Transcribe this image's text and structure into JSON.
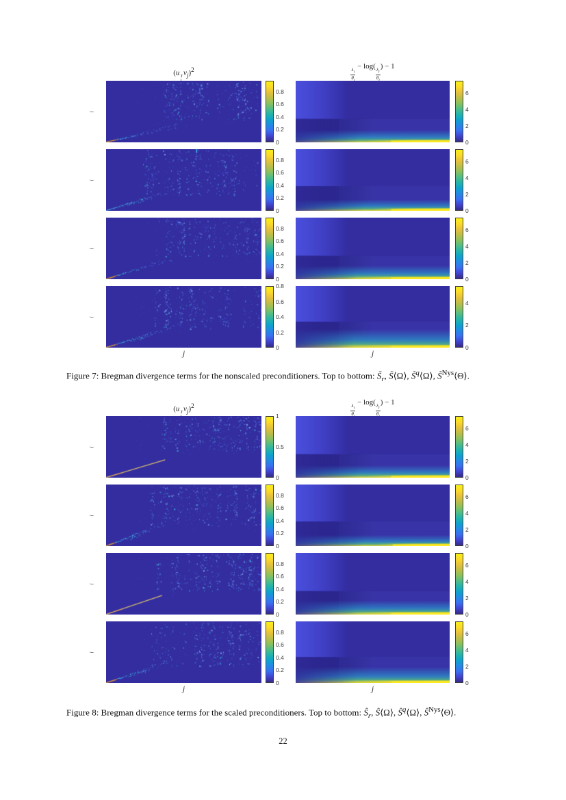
{
  "page": {
    "number": "22"
  },
  "colors": {
    "heat_bg": "#332da0",
    "band": "#4a50dd",
    "diag_tan": "#d7bd6e",
    "diag_orange": "#e6a037",
    "parula": [
      "#352a87",
      "#4144cf",
      "#3a6ff0",
      "#2489e5",
      "#0fa2cc",
      "#23b3ab",
      "#51bd86",
      "#8ac05f",
      "#bdbe48",
      "#e6c13d",
      "#fbda29",
      "#f9ef18"
    ]
  },
  "figures": [
    {
      "name": "figure-7",
      "left_title_html": "(<i>u</i><span class=\"tsub\"><sup><i>T</i></sup><sub><i>i</i></sub></span><i>v</i><sub><i>j</i></sub>)<sup>2</sup>",
      "right_title_html": "<span class=\"fr\"><span class=\"fn\"><i>&#955;</i><sub><i>i</i></sub></span><span class=\"fd\"><i>&#952;</i><sub><i>j</i></sub></span></span> &#8722; log(<span class=\"fr\"><span class=\"fn\"><i>&#955;</i><sub><i>i</i></sub></span><span class=\"fd\"><i>&#952;</i><sub><i>j</i></sub></span></span>) &#8722; 1",
      "xlabel": "j",
      "ylabel": "i",
      "caption_html": "Figure 7: Bregman divergence terms for the nonscaled preconditioners. Top to bottom: <i>S&#771;</i><sub><i>r</i></sub>, <i>S&#771;</i>&#10216;&#937;&#10217;, <i>S&#771;</i><sup><i>q</i></sup>&#10216;&#937;&#10217;, <i>S&#771;</i><sup>Nys</sup>&#10216;&#920;&#10217;.",
      "rows": [
        {
          "label": "S̃_r",
          "left": {
            "type": "speckle-heatmap",
            "seed": 101,
            "diag": [
              0.45,
              0.26
            ],
            "style": "speckled",
            "orange": true,
            "cluster": false,
            "field": [
              0.3,
              0.62
            ],
            "cbar": {
              "ticks": [
                0,
                0.2,
                0.4,
                0.6,
                0.8
              ],
              "vmax": 0.97
            }
          },
          "right": {
            "type": "smooth-heatmap",
            "step": 0.62,
            "glow_top": 0.8,
            "att_x": 0.42,
            "yellow_from": 0.45,
            "seam": 0.62,
            "cbar": {
              "ticks": [
                0,
                2,
                4,
                6
              ],
              "vmax": 7.5
            }
          }
        },
        {
          "label": "S̃⟨Ω⟩",
          "left": {
            "type": "speckle-heatmap",
            "seed": 102,
            "diag": [
              0.4,
              0.31
            ],
            "style": "speckled",
            "orange": false,
            "cluster": true,
            "field": [
              0.24,
              0.74
            ],
            "top_tick": 0.58,
            "cbar": {
              "ticks": [
                0,
                0.2,
                0.4,
                0.6,
                0.8
              ],
              "vmax": 0.97
            }
          },
          "right": {
            "type": "smooth-heatmap",
            "step": 0.6,
            "glow_top": 0.82,
            "att_x": 0.45,
            "yellow_from": 0.5,
            "seam": 0.62,
            "cbar": {
              "ticks": [
                0,
                2,
                4,
                6
              ],
              "vmax": 7.5
            }
          }
        },
        {
          "label": "S̃^q⟨Ω⟩",
          "left": {
            "type": "speckle-heatmap",
            "seed": 103,
            "diag": [
              0.42,
              0.33
            ],
            "style": "speckled",
            "orange": true,
            "cluster": false,
            "field": [
              0.3,
              0.62
            ],
            "cbar": {
              "ticks": [
                0,
                0.2,
                0.4,
                0.6,
                0.8
              ],
              "vmax": 0.97
            }
          },
          "right": {
            "type": "smooth-heatmap",
            "step": 0.62,
            "glow_top": 0.78,
            "att_x": 0.4,
            "yellow_from": 0.33,
            "seam": 0.62,
            "cbar": {
              "ticks": [
                0,
                2,
                4,
                6
              ],
              "vmax": 7.5
            }
          }
        },
        {
          "label": "S̃^Nys⟨Θ⟩",
          "left": {
            "type": "speckle-heatmap",
            "seed": 104,
            "diag": [
              0.45,
              0.34
            ],
            "style": "speckled",
            "orange": true,
            "cluster": true,
            "field": [
              0.28,
              0.68
            ],
            "cbar": {
              "ticks": [
                0,
                0.2,
                0.4,
                0.6,
                0.8
              ],
              "vmax": 0.8
            }
          },
          "right": {
            "type": "smooth-heatmap",
            "step": 0.58,
            "glow_top": 0.7,
            "att_x": 0.38,
            "yellow_from": 0.28,
            "seam": 0.62,
            "cbar": {
              "ticks": [
                0,
                2,
                4
              ],
              "vmax": 5.5
            }
          }
        }
      ]
    },
    {
      "name": "figure-8",
      "left_title_html": "(<i>u</i><span class=\"tsub\"><sup><i>T</i></sup><sub><i>i</i></sub></span><i>v</i><sub><i>j</i></sub>)<sup>2</sup>",
      "right_title_html": "<span class=\"fr\"><span class=\"fn\"><i>&#955;</i><sub><i>i</i></sub></span><span class=\"fd\"><i>&#952;</i><sub><i>j</i></sub></span></span> &#8722; log(<span class=\"fr\"><span class=\"fn\"><i>&#955;</i><sub><i>i</i></sub></span><span class=\"fd\"><i>&#952;</i><sub><i>j</i></sub></span></span>) &#8722; 1",
      "xlabel": "j",
      "ylabel": "i",
      "caption_html": "Figure 8: Bregman divergence terms for the scaled preconditioners. Top to bottom: <i>S&#770;</i><sub><i>r</i></sub>, <i>S&#770;</i>&#10216;&#937;&#10217;, <i>S&#770;</i><sup><i>q</i></sup>&#10216;&#937;&#10217;, <i>S&#770;</i><sup>Nys</sup>&#10216;&#920;&#10217;.",
      "rows": [
        {
          "label": "Ŝ_r",
          "left": {
            "type": "speckle-heatmap",
            "seed": 201,
            "diag": [
              0.38,
              0.29
            ],
            "style": "line",
            "orange": true,
            "cluster": false,
            "field": [
              0.36,
              0.55
            ],
            "cbar": {
              "ticks": [
                0,
                0.5,
                1
              ],
              "vmax": 1.0
            }
          },
          "right": {
            "type": "smooth-heatmap",
            "step": 0.62,
            "glow_top": 0.8,
            "att_x": 0.42,
            "yellow_from": 0.45,
            "seam": 0.62,
            "cbar": {
              "ticks": [
                0,
                2,
                4,
                6
              ],
              "vmax": 7.5
            }
          }
        },
        {
          "label": "Ŝ⟨Ω⟩",
          "left": {
            "type": "speckle-heatmap",
            "seed": 202,
            "diag": [
              0.36,
              0.33
            ],
            "style": "speckled",
            "orange": true,
            "cluster": true,
            "field": [
              0.28,
              0.66
            ],
            "cbar": {
              "ticks": [
                0,
                0.2,
                0.4,
                0.6,
                0.8
              ],
              "vmax": 0.97
            }
          },
          "right": {
            "type": "smooth-heatmap",
            "step": 0.6,
            "glow_top": 0.82,
            "att_x": 0.45,
            "yellow_from": 0.52,
            "seam": 0.63,
            "cbar": {
              "ticks": [
                0,
                2,
                4,
                6
              ],
              "vmax": 7.5
            }
          }
        },
        {
          "label": "Ŝ^q⟨Ω⟩",
          "left": {
            "type": "speckle-heatmap",
            "seed": 203,
            "diag": [
              0.36,
              0.31
            ],
            "style": "line",
            "orange": true,
            "cluster": false,
            "field": [
              0.33,
              0.6
            ],
            "cbar": {
              "ticks": [
                0,
                0.2,
                0.4,
                0.6,
                0.8
              ],
              "vmax": 0.97
            }
          },
          "right": {
            "type": "smooth-heatmap",
            "step": 0.62,
            "glow_top": 0.77,
            "att_x": 0.4,
            "yellow_from": 0.35,
            "seam": 0.62,
            "cbar": {
              "ticks": [
                0,
                2,
                4,
                6
              ],
              "vmax": 7.5
            }
          }
        },
        {
          "label": "Ŝ^Nys⟨Θ⟩",
          "left": {
            "type": "speckle-heatmap",
            "seed": 204,
            "diag": [
              0.42,
              0.35
            ],
            "style": "speckled",
            "orange": true,
            "cluster": true,
            "field": [
              0.26,
              0.72
            ],
            "cbar": {
              "ticks": [
                0,
                0.2,
                0.4,
                0.6,
                0.8
              ],
              "vmax": 0.97
            }
          },
          "right": {
            "type": "smooth-heatmap",
            "step": 0.58,
            "glow_top": 0.74,
            "att_x": 0.4,
            "yellow_from": 0.3,
            "seam": 0.62,
            "cbar": {
              "ticks": [
                0,
                2,
                4,
                6
              ],
              "vmax": 7.5
            }
          }
        }
      ]
    }
  ]
}
